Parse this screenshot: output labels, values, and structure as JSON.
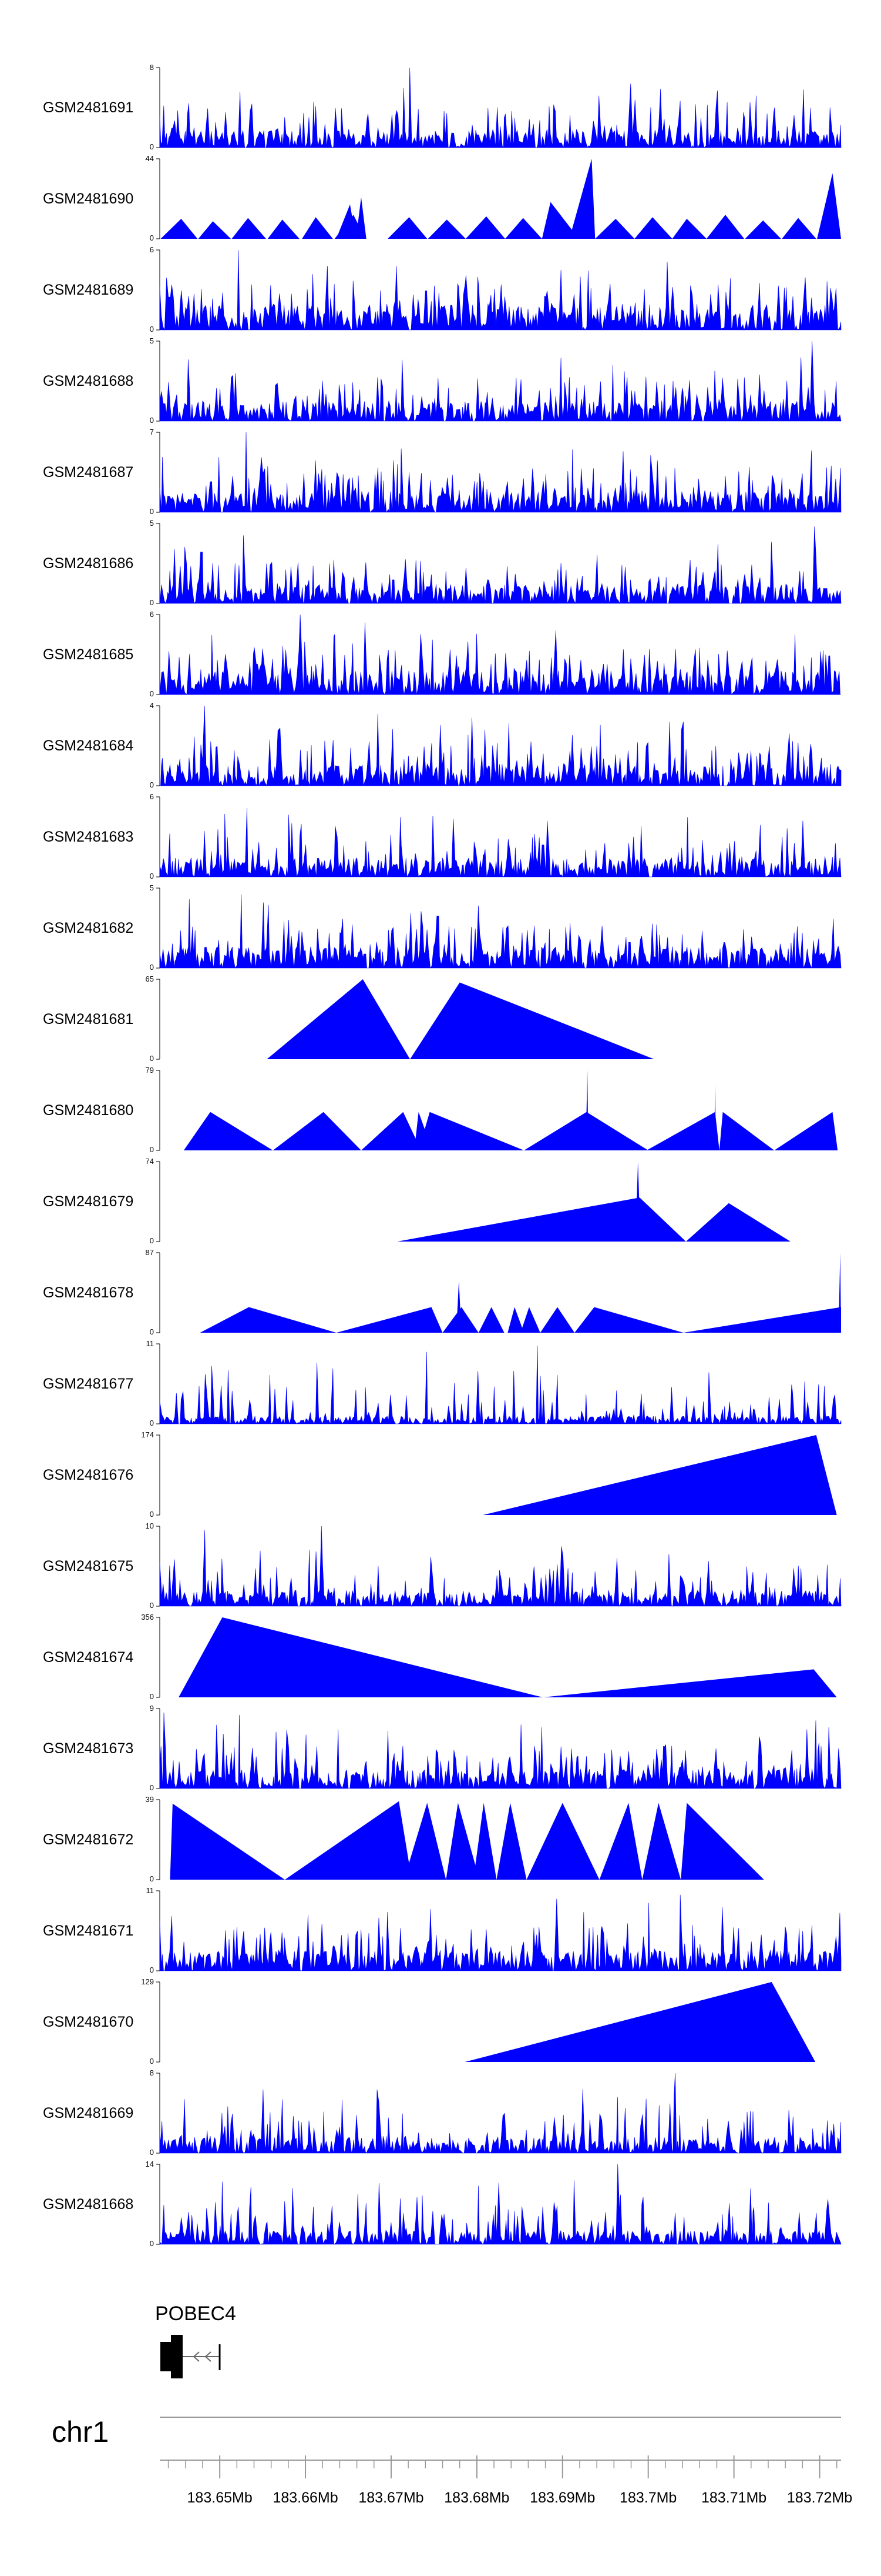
{
  "chart_data": {
    "type": "area",
    "chromosome": "chr1",
    "fill_color": "#0000ff",
    "xlim_mb": [
      183.643,
      183.7225
    ],
    "x_ticks_mb": [
      183.65,
      183.66,
      183.67,
      183.68,
      183.69,
      183.7,
      183.71,
      183.72
    ],
    "x_tick_labels": [
      "183.65Mb",
      "183.66Mb",
      "183.67Mb",
      "183.68Mb",
      "183.69Mb",
      "183.7Mb",
      "183.71Mb",
      "183.72Mb"
    ],
    "gene": {
      "label": "POBEC4",
      "start_mb": 183.643,
      "end_mb": 183.6498,
      "strand": "-"
    },
    "tracks": [
      {
        "name": "GSM2481691",
        "ymax": 8,
        "ymax_label": "8",
        "ymin_label": "0",
        "kind": "dense",
        "seed": 11,
        "base": 0.22,
        "spikes": [
          [
            183.6722,
            1.0
          ],
          [
            183.6979,
            0.8
          ],
          [
            183.6523,
            0.7
          ],
          [
            183.7126,
            0.65
          ]
        ]
      },
      {
        "name": "GSM2481690",
        "ymax": 44,
        "ymax_label": "44",
        "ymin_label": "0",
        "kind": "peaks",
        "peaks": [
          [
            183.6431,
            183.6455,
            183.6474,
            0.25
          ],
          [
            183.6475,
            183.6492,
            183.6513,
            0.22
          ],
          [
            183.6514,
            183.6533,
            183.6554,
            0.26
          ],
          [
            183.6556,
            183.6573,
            183.6593,
            0.24
          ],
          [
            183.6596,
            183.6612,
            183.6632,
            0.27
          ],
          [
            183.6634,
            183.6656,
            183.667,
            0.3
          ],
          [
            183.6636,
            183.6652,
            183.6659,
            0.43
          ],
          [
            183.6659,
            183.6665,
            183.6671,
            0.52
          ],
          [
            183.6696,
            183.6721,
            183.6742,
            0.27
          ],
          [
            183.6743,
            183.6765,
            183.6787,
            0.24
          ],
          [
            183.6787,
            183.6811,
            183.6833,
            0.28
          ],
          [
            183.6833,
            183.6854,
            183.6876,
            0.26
          ],
          [
            183.6876,
            183.6886,
            183.6919,
            0.46
          ],
          [
            183.6908,
            183.6934,
            183.6938,
            1.0
          ],
          [
            183.6938,
            183.6962,
            183.6984,
            0.25
          ],
          [
            183.6984,
            183.7005,
            183.7028,
            0.27
          ],
          [
            183.7028,
            183.7045,
            183.7068,
            0.25
          ],
          [
            183.7068,
            183.709,
            183.7112,
            0.3
          ],
          [
            183.7113,
            183.7134,
            183.7155,
            0.23
          ],
          [
            183.7156,
            183.7175,
            183.7196,
            0.26
          ],
          [
            183.7197,
            183.7215,
            183.7225,
            0.82
          ]
        ]
      },
      {
        "name": "GSM2481689",
        "ymax": 6,
        "ymax_label": "6",
        "ymin_label": "0",
        "kind": "dense",
        "seed": 23,
        "base": 0.32,
        "spikes": [
          [
            183.6522,
            1.0
          ],
          [
            183.6706,
            0.8
          ],
          [
            183.7022,
            0.85
          ],
          [
            183.6899,
            0.75
          ]
        ]
      },
      {
        "name": "GSM2481688",
        "ymax": 5,
        "ymax_label": "5",
        "ymin_label": "0",
        "kind": "dense",
        "seed": 37,
        "base": 0.25,
        "spikes": [
          [
            183.7192,
            1.0
          ],
          [
            183.6519,
            0.6
          ],
          [
            183.6975,
            0.55
          ]
        ]
      },
      {
        "name": "GSM2481687",
        "ymax": 7,
        "ymax_label": "7",
        "ymin_label": "0",
        "kind": "dense",
        "seed": 41,
        "base": 0.26,
        "spikes": [
          [
            183.6531,
            1.0
          ],
          [
            183.6702,
            0.65
          ],
          [
            183.7031,
            0.55
          ]
        ]
      },
      {
        "name": "GSM2481686",
        "ymax": 5,
        "ymax_label": "5",
        "ymin_label": "0",
        "kind": "dense",
        "seed": 53,
        "base": 0.24,
        "spikes": [
          [
            183.6528,
            0.85
          ],
          [
            183.7194,
            0.96
          ],
          [
            183.6716,
            0.55
          ]
        ]
      },
      {
        "name": "GSM2481685",
        "ymax": 6,
        "ymax_label": "6",
        "ymin_label": "0",
        "kind": "dense",
        "seed": 61,
        "base": 0.3,
        "spikes": [
          [
            183.6594,
            1.0
          ],
          [
            183.6669,
            0.9
          ],
          [
            183.6893,
            0.8
          ],
          [
            183.7171,
            0.75
          ]
        ]
      },
      {
        "name": "GSM2481684",
        "ymax": 4,
        "ymax_label": "4",
        "ymin_label": "0",
        "kind": "dense",
        "seed": 71,
        "base": 0.27,
        "spikes": [
          [
            183.6482,
            1.0
          ],
          [
            183.6685,
            0.9
          ],
          [
            183.6794,
            0.85
          ],
          [
            183.7024,
            0.8
          ]
        ]
      },
      {
        "name": "GSM2481683",
        "ymax": 6,
        "ymax_label": "6",
        "ymin_label": "0",
        "kind": "dense",
        "seed": 83,
        "base": 0.24,
        "spikes": [
          [
            183.6531,
            0.86
          ],
          [
            183.6883,
            0.7
          ],
          [
            183.7131,
            0.65
          ]
        ]
      },
      {
        "name": "GSM2481682",
        "ymax": 5,
        "ymax_label": "5",
        "ymin_label": "0",
        "kind": "dense",
        "seed": 97,
        "base": 0.27,
        "spikes": [
          [
            183.6525,
            0.92
          ],
          [
            183.6464,
            0.86
          ],
          [
            183.6551,
            0.82
          ],
          [
            183.6801,
            0.78
          ]
        ]
      },
      {
        "name": "GSM2481681",
        "ymax": 65,
        "ymax_label": "65",
        "ymin_label": "0",
        "kind": "peaks",
        "peaks": [
          [
            183.6555,
            183.6667,
            183.6722,
            1.0
          ],
          [
            183.6722,
            183.678,
            183.7007,
            0.96
          ]
        ]
      },
      {
        "name": "GSM2481680",
        "ymax": 79,
        "ymax_label": "79",
        "ymin_label": "0",
        "kind": "peaks",
        "peaks": [
          [
            183.6458,
            183.6489,
            183.6562,
            0.48
          ],
          [
            183.6562,
            183.6621,
            183.6665,
            0.48
          ],
          [
            183.6665,
            183.6714,
            183.6735,
            0.48
          ],
          [
            183.6727,
            183.6732,
            183.6748,
            0.48
          ],
          [
            183.6732,
            183.6745,
            183.6855,
            0.48
          ],
          [
            183.6855,
            183.6928,
            183.7,
            0.48
          ],
          [
            183.6927,
            183.6929,
            183.693,
            1.0
          ],
          [
            183.6998,
            183.7078,
            183.7083,
            0.48
          ],
          [
            183.7077,
            183.7078,
            183.7079,
            0.82
          ],
          [
            183.7083,
            183.7087,
            183.7147,
            0.48
          ],
          [
            183.7147,
            183.7215,
            183.7221,
            0.48
          ]
        ]
      },
      {
        "name": "GSM2481679",
        "ymax": 74,
        "ymax_label": "74",
        "ymin_label": "0",
        "kind": "peaks",
        "peaks": [
          [
            183.6707,
            183.699,
            183.7044,
            0.55
          ],
          [
            183.6985,
            183.6988,
            183.6991,
            1.0
          ],
          [
            183.7044,
            183.7094,
            183.7166,
            0.48
          ]
        ]
      },
      {
        "name": "GSM2481678",
        "ymax": 87,
        "ymax_label": "87",
        "ymin_label": "0",
        "kind": "peaks",
        "peaks": [
          [
            183.6477,
            183.6534,
            183.6636,
            0.32
          ],
          [
            183.6636,
            183.6747,
            183.676,
            0.32
          ],
          [
            183.676,
            183.6782,
            183.6802,
            0.32
          ],
          [
            183.6776,
            183.6779,
            183.6782,
            0.65
          ],
          [
            183.6802,
            183.6817,
            183.6832,
            0.32
          ],
          [
            183.6836,
            183.6844,
            183.6855,
            0.32
          ],
          [
            183.6851,
            183.6861,
            183.6874,
            0.32
          ],
          [
            183.6874,
            183.6894,
            183.6914,
            0.32
          ],
          [
            183.6914,
            183.6937,
            183.7041,
            0.32
          ],
          [
            183.7041,
            183.7225,
            183.7225,
            0.32
          ],
          [
            183.7222,
            183.7224,
            183.7225,
            1.0
          ]
        ]
      },
      {
        "name": "GSM2481677",
        "ymax": 11,
        "ymax_label": "11",
        "ymin_label": "0",
        "kind": "dense",
        "seed": 109,
        "base": 0.1,
        "spikes": [
          [
            183.6741,
            0.9
          ],
          [
            183.6871,
            0.98
          ],
          [
            183.6875,
            0.6
          ]
        ]
      },
      {
        "name": "GSM2481676",
        "ymax": 174,
        "ymax_label": "174",
        "ymin_label": "0",
        "kind": "peaks",
        "peaks": [
          [
            183.6807,
            183.7196,
            183.722,
            1.0
          ]
        ]
      },
      {
        "name": "GSM2481675",
        "ymax": 10,
        "ymax_label": "10",
        "ymin_label": "0",
        "kind": "dense",
        "seed": 127,
        "base": 0.2,
        "spikes": [
          [
            183.6483,
            0.95
          ],
          [
            183.6618,
            1.0
          ],
          [
            183.6963,
            0.6
          ]
        ]
      },
      {
        "name": "GSM2481674",
        "ymax": 356,
        "ymax_label": "356",
        "ymin_label": "0",
        "kind": "peaks",
        "peaks": [
          [
            183.6452,
            183.6503,
            183.6877,
            1.0
          ],
          [
            183.6877,
            183.7193,
            183.722,
            0.35
          ]
        ]
      },
      {
        "name": "GSM2481673",
        "ymax": 9,
        "ymax_label": "9",
        "ymin_label": "0",
        "kind": "dense",
        "seed": 139,
        "base": 0.25,
        "spikes": [
          [
            183.6435,
            0.95
          ],
          [
            183.6523,
            0.92
          ],
          [
            183.6852,
            0.8
          ],
          [
            183.7196,
            0.85
          ]
        ]
      },
      {
        "name": "GSM2481672",
        "ymax": 39,
        "ymax_label": "39",
        "ymin_label": "0",
        "kind": "peaks",
        "peaks": [
          [
            183.6442,
            183.6445,
            183.6576,
            0.95
          ],
          [
            183.6576,
            183.6709,
            183.6724,
            0.98
          ],
          [
            183.6715,
            183.6742,
            183.6764,
            0.96
          ],
          [
            183.6764,
            183.6778,
            183.6803,
            0.96
          ],
          [
            183.6796,
            183.6808,
            183.6823,
            0.96
          ],
          [
            183.6823,
            183.6839,
            183.6858,
            0.96
          ],
          [
            183.6858,
            183.69,
            183.6943,
            0.96
          ],
          [
            183.6943,
            183.6977,
            183.6993,
            0.96
          ],
          [
            183.6993,
            183.7012,
            183.7038,
            0.96
          ],
          [
            183.7038,
            183.7045,
            183.7135,
            0.96
          ]
        ]
      },
      {
        "name": "GSM2481671",
        "ymax": 11,
        "ymax_label": "11",
        "ymin_label": "0",
        "kind": "dense",
        "seed": 151,
        "base": 0.25,
        "spikes": [
          [
            183.6894,
            0.9
          ],
          [
            183.7038,
            0.95
          ],
          [
            183.7087,
            0.8
          ],
          [
            183.7001,
            0.85
          ]
        ]
      },
      {
        "name": "GSM2481670",
        "ymax": 129,
        "ymax_label": "129",
        "ymin_label": "0",
        "kind": "peaks",
        "peaks": [
          [
            183.6786,
            183.7144,
            183.7195,
            1.0
          ]
        ]
      },
      {
        "name": "GSM2481669",
        "ymax": 8,
        "ymax_label": "8",
        "ymin_label": "0",
        "kind": "dense",
        "seed": 163,
        "base": 0.2,
        "spikes": [
          [
            183.7031,
            1.0
          ],
          [
            183.6923,
            0.8
          ],
          [
            183.6964,
            0.7
          ]
        ]
      },
      {
        "name": "GSM2481668",
        "ymax": 14,
        "ymax_label": "14",
        "ymin_label": "0",
        "kind": "dense",
        "seed": 173,
        "base": 0.17,
        "spikes": [
          [
            183.6964,
            1.0
          ],
          [
            183.6535,
            0.45
          ],
          [
            183.7175,
            0.4
          ]
        ]
      }
    ]
  }
}
